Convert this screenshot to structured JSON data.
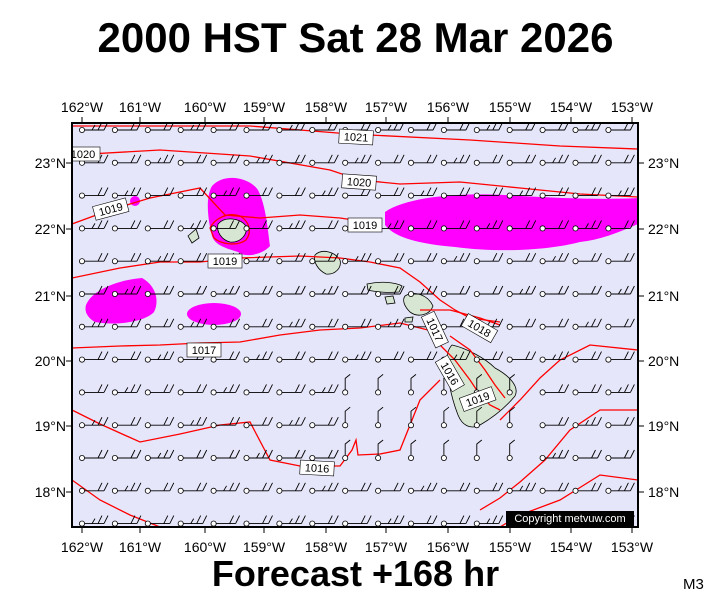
{
  "title": "2000 HST Sat 28 Mar 2026",
  "footer": "Forecast +168 hr",
  "model_label": "M3",
  "copyright": "Copyright metvuw.com",
  "colors": {
    "ocean": "#e6e6fa",
    "isobar": "#ff0000",
    "rain": "#ff00ff",
    "land": "#d7e6d2",
    "wind": "#000000"
  },
  "lon_labels": [
    "162°W",
    "161°W",
    "160°W",
    "159°W",
    "158°W",
    "157°W",
    "156°W",
    "155°W",
    "154°W",
    "153°W"
  ],
  "lat_labels": [
    "23°N",
    "22°N",
    "21°N",
    "20°N",
    "19°N",
    "18°N"
  ],
  "isobar_labels": [
    "1021",
    "1020",
    "1020",
    "1019",
    "1019",
    "1019",
    "1018",
    "1017",
    "1017",
    "1016",
    "1019",
    "1016"
  ]
}
